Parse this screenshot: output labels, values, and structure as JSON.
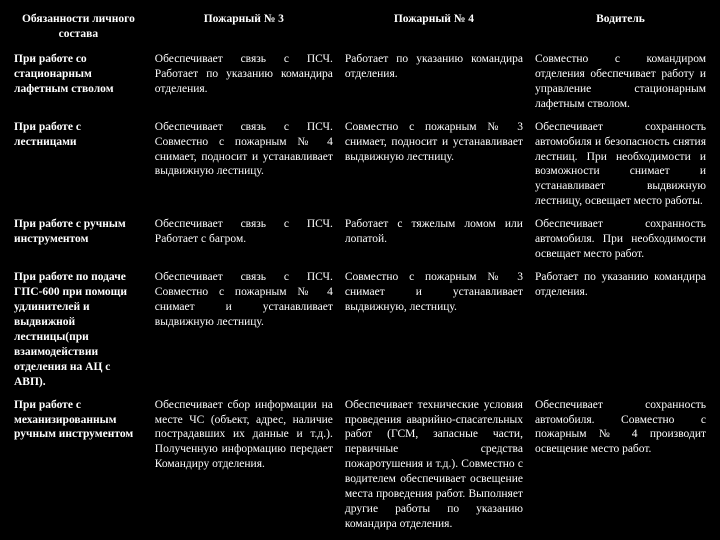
{
  "headers": {
    "c1": "Обязанности личного состава",
    "c2": "Пожарный № 3",
    "c3": "Пожарный № 4",
    "c4": "Водитель"
  },
  "rows": [
    {
      "c1": "При работе со стационарным лафетным стволом",
      "c2": "Обеспечивает связь с ПСЧ. Работает по указанию командира отделения.",
      "c3": "Работает по указанию командира отделения.",
      "c4": "Совместно с командиром отделения обеспечивает работу и управление стационарным лафетным стволом."
    },
    {
      "c1": "При работе с лестницами",
      "c2": "Обеспечивает связь с ПСЧ. Совместно с пожарным № 4 снимает, подносит и устанавливает выдвижную лестницу.",
      "c3": "Совместно с пожарным № 3 снимает, подносит и устанавливает выдвижную лестницу.",
      "c4": "Обеспечивает сохранность автомобиля и безопасность снятия лестниц. При необходимости и возможности снимает и устанавливает выдвижную лестницу, освещает место работы."
    },
    {
      "c1": "При работе с ручным инструментом",
      "c2": "Обеспечивает связь с ПСЧ. Работает с багром.",
      "c3": "Работает с тяжелым ломом или лопатой.",
      "c4": "Обеспечивает сохранность автомобиля. При необходимости освещает место работ."
    },
    {
      "c1": "При работе по подаче ГПС-600 при помощи удлинителей и выдвижной лестницы(при взаимодействии отделения на АЦ с АВП).",
      "c2": "Обеспечивает связь с ПСЧ. Совместно с пожарным № 4 снимает и устанавливает выдвижную лестницу.",
      "c3": "Совместно с пожарным № 3 снимает и устанавливает выдвижную, лестницу.",
      "c4": "Работает по указанию командира отделения."
    },
    {
      "c1": "При работе с механизированным ручным инструментом",
      "c2": "Обеспечивает сбор информации на месте ЧС (объект, адрес, наличие пострадавших их данные и т.д.). Полученную информацию передает Командиру отделения.",
      "c3": "Обеспечивает технические условия проведения аварийно-спасательных работ (ГСМ, запасные части, первичные средства пожаротушения и т.д.). Совместно с водителем обеспечивает освещение места проведения работ. Выполняет другие работы по указанию командира отделения.",
      "c4": "Обеспечивает сохранность автомобиля. Совместно с пожарным № 4 производит освещение место работ."
    }
  ]
}
